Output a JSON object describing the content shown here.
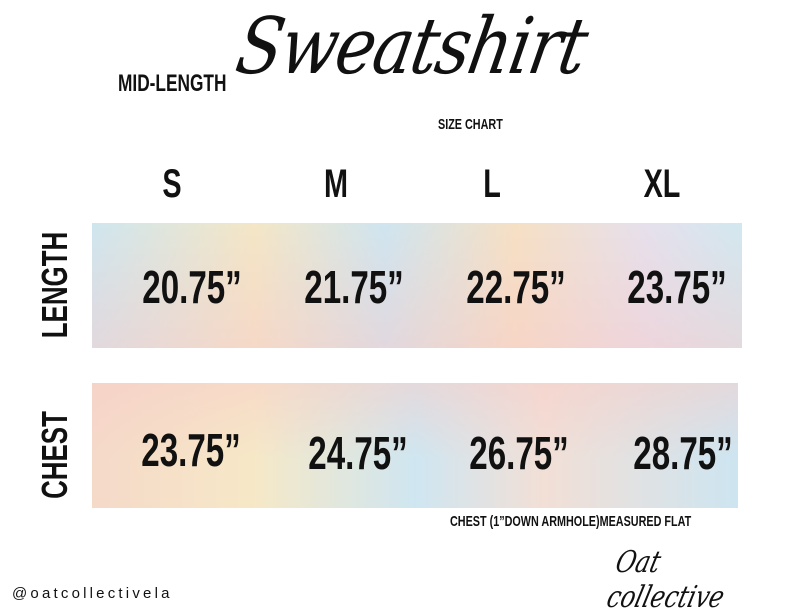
{
  "header": {
    "subtitle": "MID-LENGTH",
    "title": "Sweatshirt",
    "caption": "SIZE CHART"
  },
  "sizes": [
    "S",
    "M",
    "L",
    "XL"
  ],
  "rows": [
    {
      "label": "LENGTH",
      "values": [
        "20.75”",
        "21.75”",
        "22.75”",
        "23.75”"
      ]
    },
    {
      "label": "CHEST",
      "values": [
        "23.75”",
        "24.75”",
        "26.75”",
        "28.75”"
      ]
    }
  ],
  "note": "CHEST (1”DOWN ARMHOLE)MEASURED FLAT",
  "footer": {
    "handle": "@oatcollectivela",
    "logo": "Oat collective"
  },
  "colors": {
    "text": "#111111",
    "pastel_blue": "#cfe6ef",
    "pastel_yellow": "#f4e6c6",
    "pastel_pink": "#f5d9c9"
  }
}
